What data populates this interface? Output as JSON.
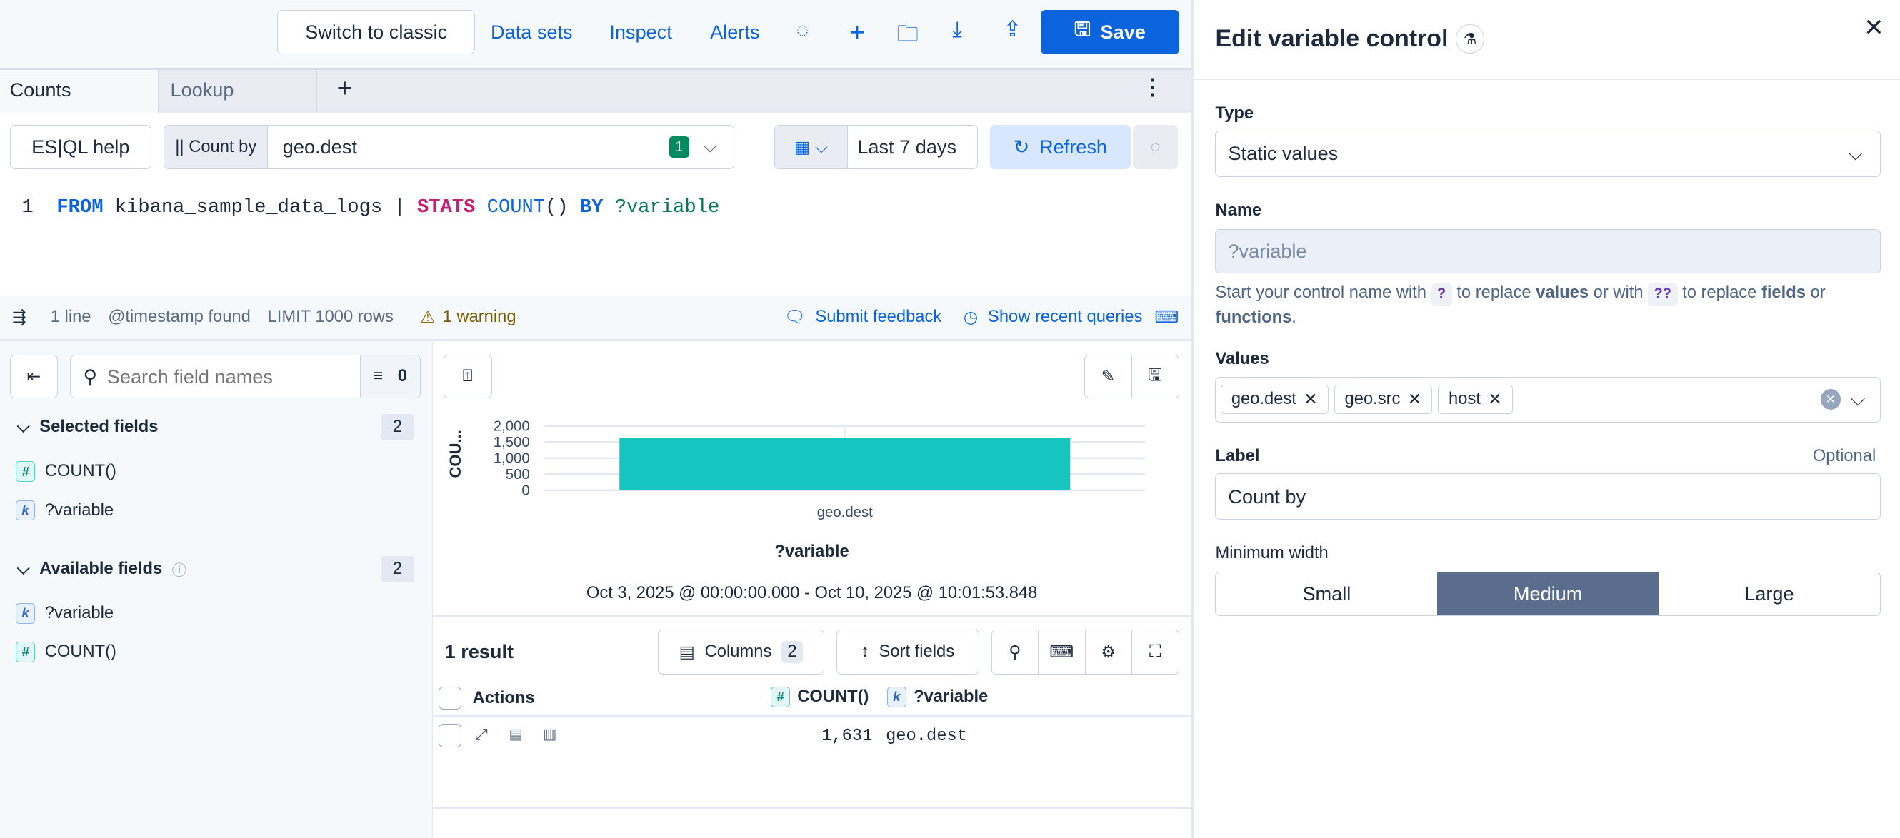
{
  "topbar": {
    "switch_classic": "Switch to classic",
    "data_sets": "Data sets",
    "inspect": "Inspect",
    "alerts": "Alerts",
    "save": "Save"
  },
  "tabs": [
    {
      "label": "Counts",
      "selected": true
    },
    {
      "label": "Lookup",
      "selected": false
    }
  ],
  "controls": {
    "esql_help": "ES|QL help",
    "count_by_label": "|| Count by",
    "count_by_value": "geo.dest",
    "count_by_badge": "1",
    "time_range": "Last 7 days",
    "refresh": "Refresh"
  },
  "editor": {
    "line_number": "1",
    "tokens": {
      "from": "FROM",
      "index": " kibana_sample_data_logs | ",
      "stats": "STATS",
      "count": " COUNT",
      "paren": "()",
      "by": " BY",
      "var": " ?variable"
    }
  },
  "status": {
    "lines": "1 line",
    "timestamp": "@timestamp found",
    "limit": "LIMIT 1000 rows",
    "warning": "1 warning",
    "feedback": "Submit feedback",
    "recent": "Show recent queries"
  },
  "sidebar": {
    "search_placeholder": "Search field names",
    "filter_count": "0",
    "selected": {
      "title": "Selected fields",
      "count": "2",
      "fields": [
        {
          "type": "#",
          "name": "COUNT()"
        },
        {
          "type": "k",
          "name": "?variable"
        }
      ]
    },
    "available": {
      "title": "Available fields",
      "count": "2",
      "fields": [
        {
          "type": "k",
          "name": "?variable"
        },
        {
          "type": "#",
          "name": "COUNT()"
        }
      ]
    }
  },
  "chart_data": {
    "type": "bar",
    "categories": [
      "geo.dest"
    ],
    "values": [
      1631
    ],
    "ylabel": "COU...",
    "xlabel": "?variable",
    "yticks": [
      "0",
      "500",
      "1,000",
      "1,500",
      "2,000"
    ],
    "ylim": [
      0,
      2000
    ],
    "grid": true,
    "color": "#16c5c0"
  },
  "chart_footer": {
    "range": "Oct 3, 2025 @ 00:00:00.000 - Oct 10, 2025 @ 10:01:53.848"
  },
  "results": {
    "count": "1 result",
    "columns": "Columns",
    "columns_badge": "2",
    "sort": "Sort fields",
    "headers": {
      "actions": "Actions",
      "count": "COUNT()",
      "variable": "?variable"
    },
    "rows": [
      {
        "count": "1,631",
        "variable": "geo.dest"
      }
    ]
  },
  "flyout": {
    "title": "Edit variable control",
    "type_label": "Type",
    "type_value": "Static values",
    "name_label": "Name",
    "name_value": "?variable",
    "help": {
      "a": "Start your control name with ",
      "q1": "?",
      "b": " to replace ",
      "values": "values",
      "c": " or with ",
      "q2": "??",
      "d": " to replace ",
      "fields": "fields",
      "e": " or ",
      "functions": "functions",
      "f": "."
    },
    "values_label": "Values",
    "values": [
      "geo.dest",
      "geo.src",
      "host"
    ],
    "label_label": "Label",
    "optional": "Optional",
    "label_value": "Count by",
    "minwidth_label": "Minimum width",
    "widths": [
      "Small",
      "Medium",
      "Large"
    ],
    "selected_width": "Medium"
  }
}
